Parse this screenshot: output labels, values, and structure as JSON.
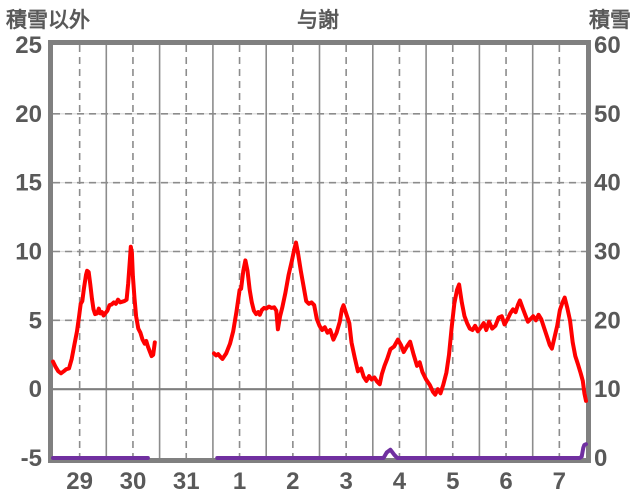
{
  "header": {
    "left_axis_title": "積雪以外",
    "title": "与謝",
    "right_axis_title": "積雪"
  },
  "colors": {
    "temperature_line": "#ff0000",
    "snow_line": "#7030a0",
    "grid": "#8c8c8c",
    "grid_light": "#d9d9d9",
    "border": "#808080",
    "zero_line": "#7f7f7f",
    "text": "#595959"
  },
  "chart_data": {
    "type": "line",
    "title": "与謝",
    "x_axis": {
      "labels": [
        "29",
        "30",
        "31",
        "1",
        "2",
        "3",
        "4",
        "5",
        "6",
        "7"
      ],
      "days": 10,
      "grid_solid": "day boundaries",
      "grid_dashed": "day midpoints"
    },
    "left_axis": {
      "label": "積雪以外",
      "range": [
        -5,
        25
      ],
      "ticks": [
        25,
        20,
        15,
        10,
        5,
        0,
        -5
      ],
      "dashed_gridlines": [
        20,
        15,
        10,
        5
      ],
      "zero_line": 0
    },
    "right_axis": {
      "label": "積雪",
      "range": [
        0,
        60
      ],
      "ticks": [
        60,
        50,
        40,
        30,
        20,
        10,
        0
      ]
    },
    "legend": "none",
    "series": [
      {
        "name": "積雪以外",
        "axis": "left",
        "color": "#ff0000",
        "width": 4,
        "segments": [
          [
            [
              0,
              2.0
            ],
            [
              0.05,
              1.6
            ],
            [
              0.1,
              1.3
            ],
            [
              0.15,
              1.15
            ],
            [
              0.2,
              1.3
            ],
            [
              0.25,
              1.45
            ],
            [
              0.3,
              1.5
            ],
            [
              0.35,
              2.2
            ],
            [
              0.4,
              3.2
            ],
            [
              0.45,
              4.2
            ],
            [
              0.49,
              5.3
            ],
            [
              0.52,
              6.2
            ],
            [
              0.55,
              6.4
            ],
            [
              0.58,
              7.3
            ],
            [
              0.62,
              8.3
            ],
            [
              0.64,
              8.6
            ],
            [
              0.67,
              8.5
            ],
            [
              0.7,
              7.6
            ],
            [
              0.73,
              6.6
            ],
            [
              0.76,
              5.8
            ],
            [
              0.79,
              5.45
            ],
            [
              0.83,
              5.5
            ],
            [
              0.86,
              5.85
            ],
            [
              0.89,
              5.5
            ],
            [
              0.92,
              5.6
            ],
            [
              0.95,
              5.35
            ],
            [
              0.98,
              5.5
            ],
            [
              1.02,
              5.7
            ],
            [
              1.06,
              6.1
            ],
            [
              1.1,
              6.15
            ],
            [
              1.14,
              6.3
            ],
            [
              1.18,
              6.2
            ],
            [
              1.22,
              6.5
            ],
            [
              1.26,
              6.3
            ],
            [
              1.3,
              6.35
            ],
            [
              1.34,
              6.4
            ],
            [
              1.38,
              6.5
            ],
            [
              1.41,
              7.7
            ],
            [
              1.44,
              9.3
            ],
            [
              1.46,
              10.35
            ],
            [
              1.48,
              9.9
            ],
            [
              1.5,
              8.2
            ],
            [
              1.53,
              6.6
            ],
            [
              1.56,
              5.3
            ],
            [
              1.6,
              4.4
            ],
            [
              1.64,
              4.1
            ],
            [
              1.68,
              3.6
            ],
            [
              1.72,
              3.3
            ],
            [
              1.75,
              3.5
            ],
            [
              1.78,
              3.1
            ],
            [
              1.82,
              2.7
            ],
            [
              1.85,
              2.4
            ],
            [
              1.88,
              2.5
            ],
            [
              1.91,
              3.4
            ]
          ],
          [
            [
              3.02,
              2.6
            ],
            [
              3.06,
              2.45
            ],
            [
              3.1,
              2.55
            ],
            [
              3.14,
              2.35
            ],
            [
              3.18,
              2.2
            ],
            [
              3.25,
              2.6
            ],
            [
              3.32,
              3.3
            ],
            [
              3.38,
              4.2
            ],
            [
              3.44,
              5.6
            ],
            [
              3.5,
              7.2
            ],
            [
              3.53,
              7.3
            ],
            [
              3.57,
              8.6
            ],
            [
              3.61,
              9.35
            ],
            [
              3.65,
              8.6
            ],
            [
              3.69,
              7.2
            ],
            [
              3.73,
              6.3
            ],
            [
              3.77,
              5.7
            ],
            [
              3.81,
              5.45
            ],
            [
              3.85,
              5.6
            ],
            [
              3.88,
              5.4
            ],
            [
              3.92,
              5.75
            ],
            [
              3.96,
              5.9
            ],
            [
              4.0,
              5.85
            ],
            [
              4.05,
              6.0
            ],
            [
              4.1,
              5.9
            ],
            [
              4.15,
              5.95
            ],
            [
              4.19,
              5.7
            ],
            [
              4.22,
              4.35
            ],
            [
              4.26,
              5.3
            ],
            [
              4.3,
              5.9
            ],
            [
              4.36,
              7.0
            ],
            [
              4.42,
              8.3
            ],
            [
              4.48,
              9.3
            ],
            [
              4.53,
              10.2
            ],
            [
              4.56,
              10.65
            ],
            [
              4.6,
              9.8
            ],
            [
              4.65,
              8.6
            ],
            [
              4.7,
              7.5
            ],
            [
              4.75,
              6.4
            ],
            [
              4.8,
              6.2
            ],
            [
              4.85,
              6.3
            ],
            [
              4.9,
              6.1
            ],
            [
              4.95,
              5.1
            ],
            [
              5.0,
              4.6
            ],
            [
              5.05,
              4.3
            ],
            [
              5.1,
              4.5
            ],
            [
              5.15,
              4.1
            ],
            [
              5.2,
              4.3
            ],
            [
              5.26,
              3.6
            ],
            [
              5.32,
              4.1
            ],
            [
              5.38,
              4.9
            ],
            [
              5.42,
              5.8
            ],
            [
              5.45,
              6.1
            ],
            [
              5.5,
              5.5
            ],
            [
              5.56,
              4.8
            ],
            [
              5.6,
              3.4
            ],
            [
              5.66,
              2.3
            ],
            [
              5.72,
              1.3
            ],
            [
              5.78,
              1.5
            ],
            [
              5.83,
              0.9
            ],
            [
              5.88,
              0.6
            ],
            [
              5.93,
              0.95
            ],
            [
              5.98,
              0.7
            ],
            [
              6.03,
              0.85
            ],
            [
              6.08,
              0.55
            ],
            [
              6.13,
              0.35
            ],
            [
              6.17,
              1.1
            ],
            [
              6.22,
              1.7
            ],
            [
              6.27,
              2.2
            ],
            [
              6.33,
              2.9
            ],
            [
              6.4,
              3.1
            ],
            [
              6.47,
              3.6
            ],
            [
              6.53,
              3.2
            ],
            [
              6.58,
              2.7
            ],
            [
              6.64,
              3.1
            ],
            [
              6.7,
              3.45
            ],
            [
              6.76,
              2.6
            ],
            [
              6.83,
              1.7
            ],
            [
              6.88,
              1.95
            ],
            [
              6.93,
              1.25
            ],
            [
              7.0,
              0.7
            ],
            [
              7.07,
              0.3
            ],
            [
              7.13,
              -0.2
            ],
            [
              7.17,
              -0.4
            ],
            [
              7.22,
              0.0
            ],
            [
              7.27,
              -0.3
            ],
            [
              7.32,
              0.3
            ],
            [
              7.38,
              1.2
            ],
            [
              7.43,
              2.5
            ],
            [
              7.48,
              4.5
            ],
            [
              7.53,
              6.2
            ],
            [
              7.58,
              7.2
            ],
            [
              7.62,
              7.6
            ],
            [
              7.67,
              6.3
            ],
            [
              7.72,
              5.3
            ],
            [
              7.77,
              4.8
            ],
            [
              7.82,
              4.4
            ],
            [
              7.87,
              4.3
            ],
            [
              7.92,
              4.6
            ],
            [
              7.97,
              4.2
            ],
            [
              8.03,
              4.5
            ],
            [
              8.08,
              4.8
            ],
            [
              8.13,
              4.3
            ],
            [
              8.18,
              4.9
            ],
            [
              8.24,
              4.4
            ],
            [
              8.3,
              4.6
            ],
            [
              8.36,
              5.2
            ],
            [
              8.42,
              5.3
            ],
            [
              8.47,
              4.7
            ],
            [
              8.53,
              5.1
            ],
            [
              8.58,
              5.5
            ],
            [
              8.63,
              5.8
            ],
            [
              8.68,
              5.6
            ],
            [
              8.72,
              6.1
            ],
            [
              8.76,
              6.45
            ],
            [
              8.81,
              5.9
            ],
            [
              8.86,
              5.4
            ],
            [
              8.91,
              4.9
            ],
            [
              8.96,
              5.1
            ],
            [
              9.01,
              5.3
            ],
            [
              9.06,
              5.0
            ],
            [
              9.11,
              5.4
            ],
            [
              9.16,
              5.1
            ],
            [
              9.21,
              4.5
            ],
            [
              9.27,
              3.8
            ],
            [
              9.32,
              3.2
            ],
            [
              9.36,
              2.95
            ],
            [
              9.41,
              3.8
            ],
            [
              9.46,
              4.6
            ],
            [
              9.51,
              5.75
            ],
            [
              9.56,
              6.3
            ],
            [
              9.6,
              6.65
            ],
            [
              9.65,
              5.9
            ],
            [
              9.7,
              5.0
            ],
            [
              9.75,
              3.4
            ],
            [
              9.8,
              2.4
            ],
            [
              9.85,
              1.8
            ],
            [
              9.9,
              1.15
            ],
            [
              9.94,
              0.6
            ],
            [
              9.97,
              -0.3
            ],
            [
              10.0,
              -0.85
            ]
          ]
        ]
      },
      {
        "name": "積雪",
        "axis": "right",
        "color": "#7030a0",
        "width": 4,
        "segments": [
          [
            [
              0,
              0
            ],
            [
              1.78,
              0
            ]
          ],
          [
            [
              3.08,
              0
            ],
            [
              6.2,
              0
            ],
            [
              6.26,
              0.8
            ],
            [
              6.33,
              1.2
            ],
            [
              6.4,
              0.5
            ],
            [
              6.46,
              0
            ],
            [
              9.88,
              0
            ],
            [
              9.92,
              0.2
            ],
            [
              9.95,
              1.5
            ],
            [
              9.97,
              1.9
            ],
            [
              10.0,
              2.0
            ]
          ]
        ]
      }
    ]
  }
}
